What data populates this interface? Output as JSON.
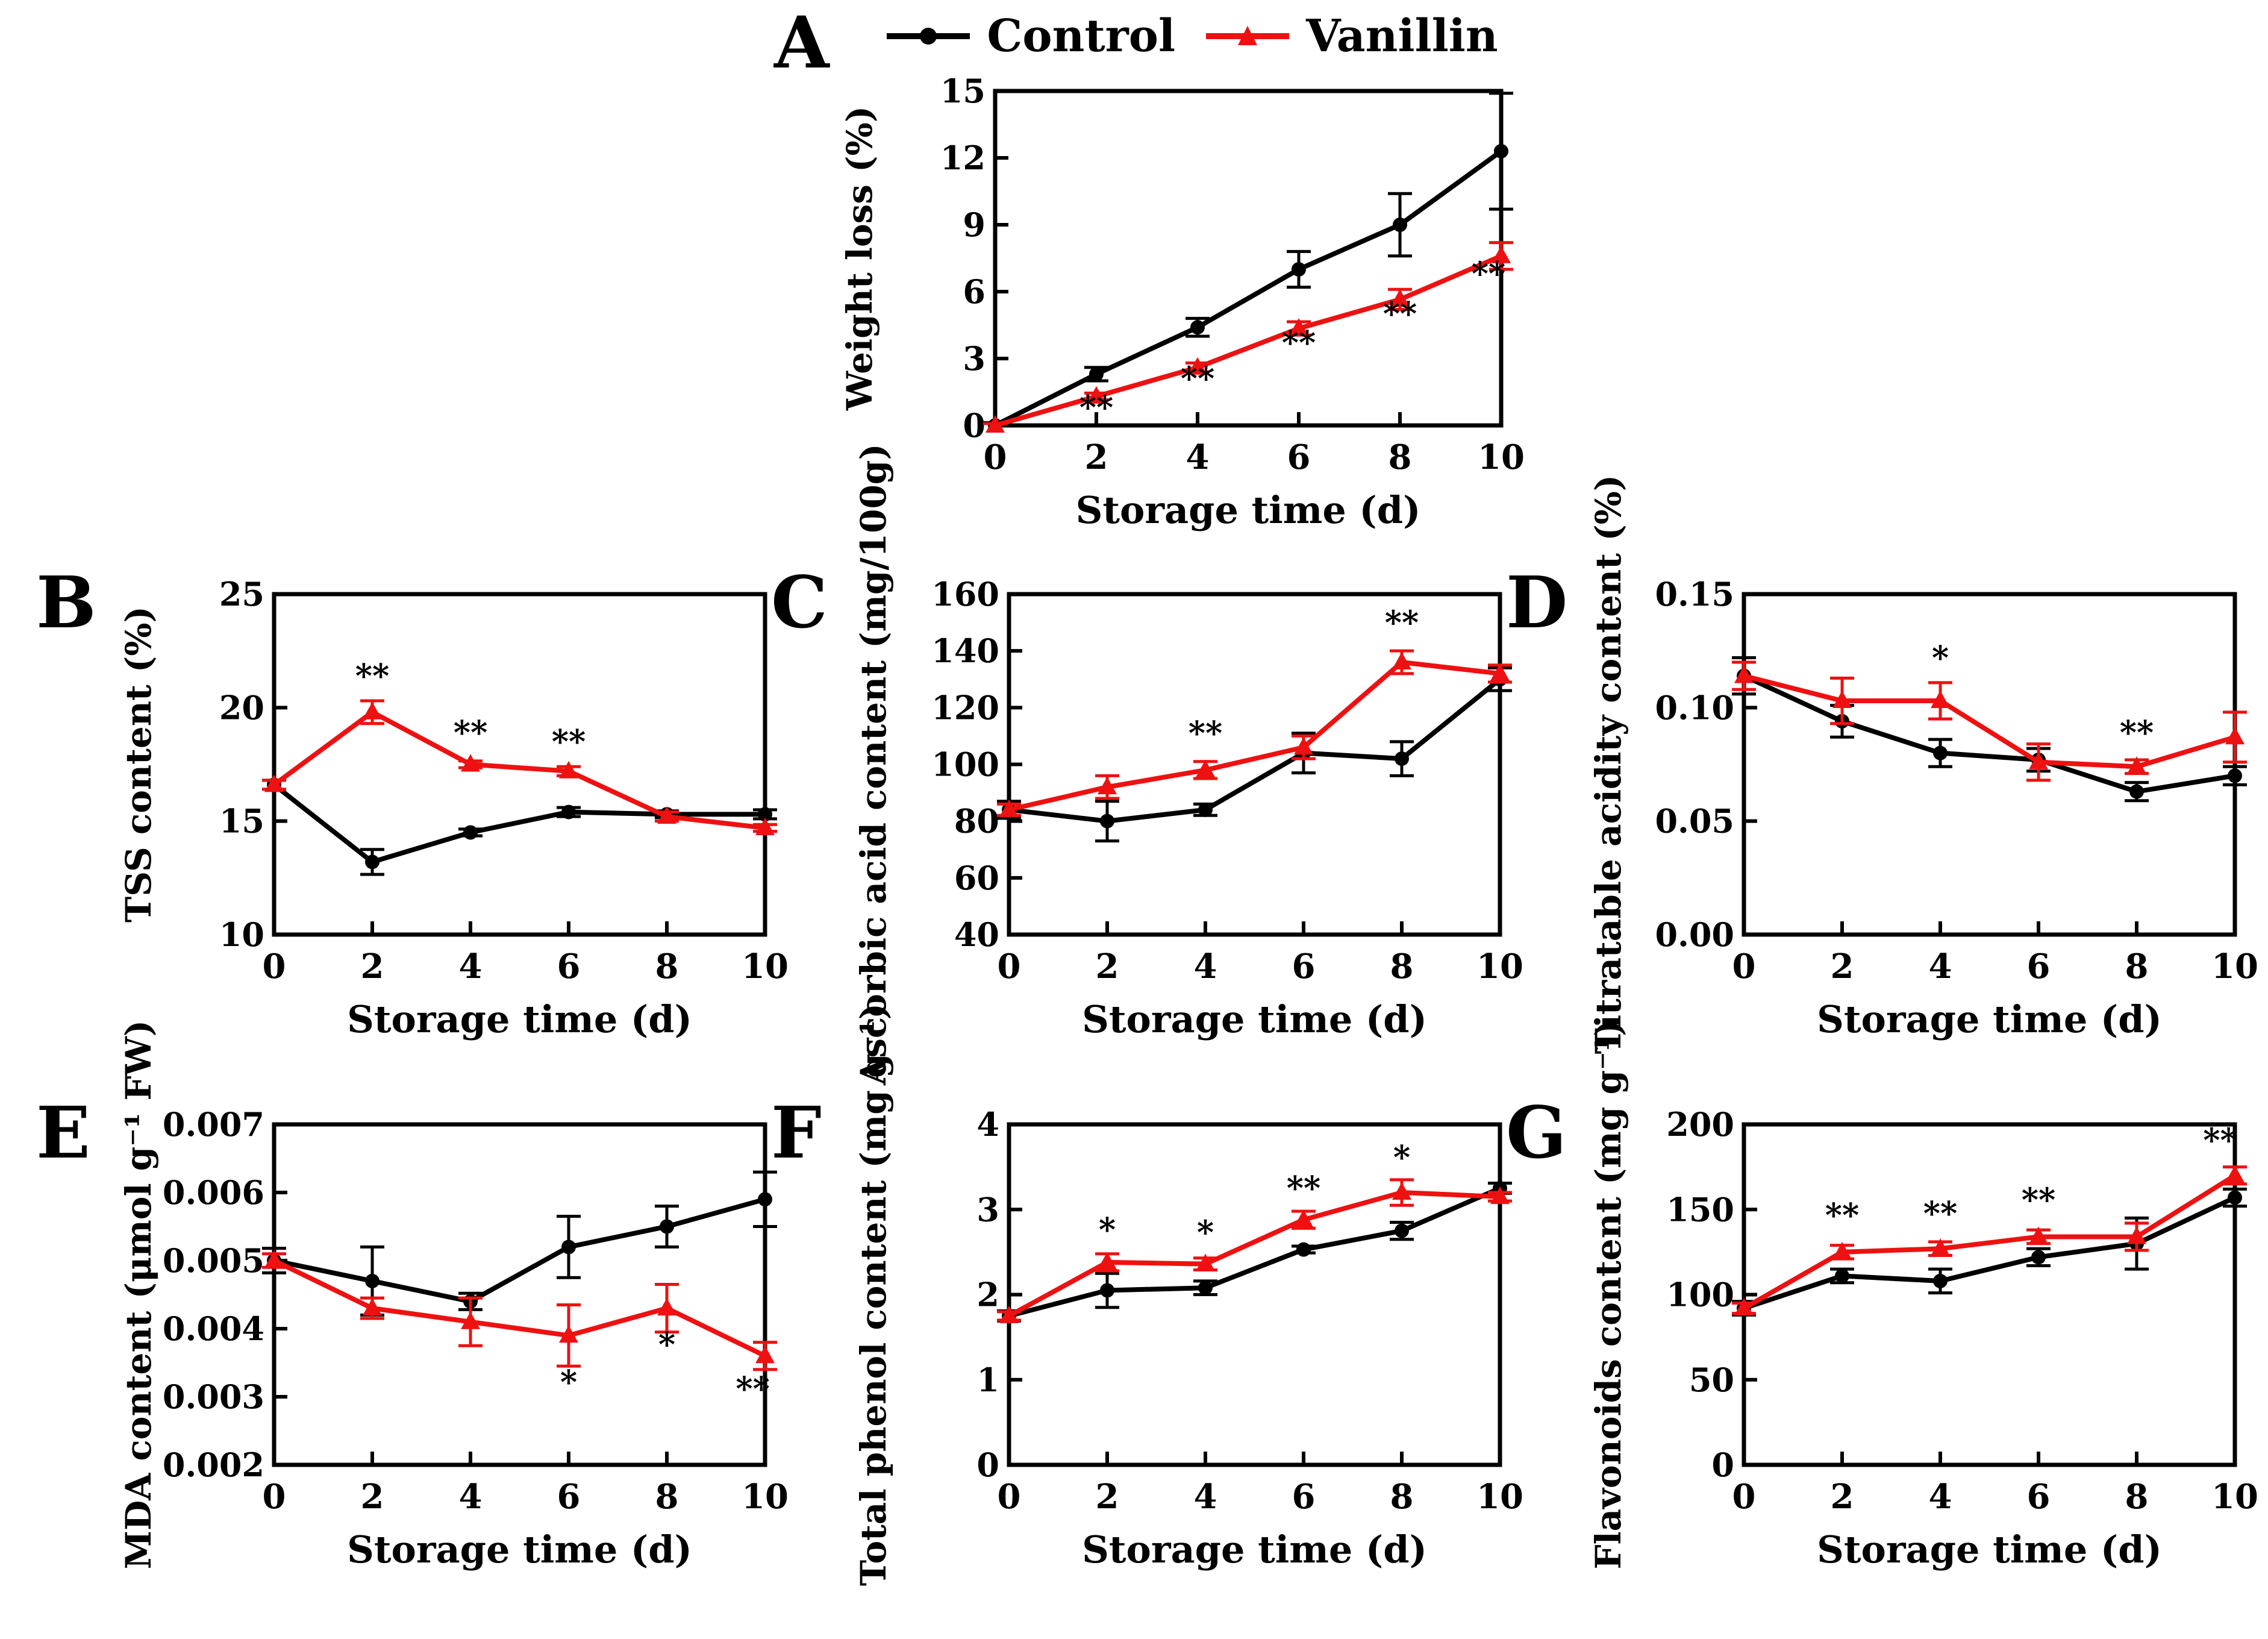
{
  "legend": {
    "items": [
      {
        "label": "Control",
        "color": "#000000",
        "marker": "circle"
      },
      {
        "label": "Vanillin",
        "color": "#ee1111",
        "marker": "triangle"
      }
    ]
  },
  "chart_data": [
    {
      "id": "A",
      "panel_label": "A",
      "type": "line",
      "title": "",
      "xlabel": "Storage time (d)",
      "ylabel": "Weight loss (%)",
      "x": [
        0,
        2,
        4,
        6,
        8,
        10
      ],
      "xlim": [
        0,
        10
      ],
      "ylim": [
        0,
        15
      ],
      "xticks": [
        0,
        2,
        4,
        6,
        8,
        10
      ],
      "xticklabels": [
        "0",
        "2",
        "4",
        "6",
        "8",
        "10"
      ],
      "yticks": [
        0,
        3,
        6,
        9,
        12,
        15
      ],
      "yticklabels": [
        "0",
        "3",
        "6",
        "9",
        "12",
        "15"
      ],
      "grid": false,
      "legend_position": "top",
      "series": [
        {
          "name": "Control",
          "color": "#000000",
          "marker": "circle",
          "values": [
            0,
            2.3,
            4.4,
            7.0,
            9.0,
            12.3
          ],
          "errors": [
            0.12,
            0.3,
            0.4,
            0.8,
            1.4,
            2.6
          ]
        },
        {
          "name": "Vanillin",
          "color": "#ee1111",
          "marker": "triangle",
          "values": [
            0,
            1.3,
            2.6,
            4.35,
            5.65,
            7.6
          ],
          "errors": [
            0.08,
            0.15,
            0.2,
            0.3,
            0.45,
            0.6
          ]
        }
      ],
      "annotations": [
        {
          "x": 2,
          "y": 0.3,
          "text": "**"
        },
        {
          "x": 4,
          "y": 1.6,
          "text": "**"
        },
        {
          "x": 6,
          "y": 3.2,
          "text": "**"
        },
        {
          "x": 8,
          "y": 4.5,
          "text": "**"
        },
        {
          "x": 9.75,
          "y": 6.3,
          "text": "**"
        }
      ]
    },
    {
      "id": "B",
      "panel_label": "B",
      "type": "line",
      "title": "",
      "xlabel": "Storage time (d)",
      "ylabel": "TSS content (%)",
      "x": [
        0,
        2,
        4,
        6,
        8,
        10
      ],
      "xlim": [
        0,
        10
      ],
      "ylim": [
        10,
        25
      ],
      "xticks": [
        0,
        2,
        4,
        6,
        8,
        10
      ],
      "xticklabels": [
        "0",
        "2",
        "4",
        "6",
        "8",
        "10"
      ],
      "yticks": [
        10,
        15,
        20,
        25
      ],
      "yticklabels": [
        "10",
        "15",
        "20",
        "25"
      ],
      "grid": false,
      "legend_position": "none",
      "series": [
        {
          "name": "Control",
          "color": "#000000",
          "marker": "circle",
          "values": [
            16.6,
            13.2,
            14.5,
            15.4,
            15.3,
            15.3
          ],
          "errors": [
            0.2,
            0.55,
            0.15,
            0.2,
            0.15,
            0.2
          ]
        },
        {
          "name": "Vanillin",
          "color": "#ee1111",
          "marker": "triangle",
          "values": [
            16.6,
            19.8,
            17.5,
            17.2,
            15.2,
            14.7
          ],
          "errors": [
            0.2,
            0.5,
            0.15,
            0.2,
            0.2,
            0.15
          ]
        }
      ],
      "annotations": [
        {
          "x": 2,
          "y": 20.9,
          "text": "**"
        },
        {
          "x": 4,
          "y": 18.4,
          "text": "**"
        },
        {
          "x": 6,
          "y": 18.0,
          "text": "**"
        }
      ]
    },
    {
      "id": "C",
      "panel_label": "C",
      "type": "line",
      "title": "",
      "xlabel": "Storage time (d)",
      "ylabel": "Ascorbic acid content (mg/100g)",
      "x": [
        0,
        2,
        4,
        6,
        8,
        10
      ],
      "xlim": [
        0,
        10
      ],
      "ylim": [
        40,
        160
      ],
      "xticks": [
        0,
        2,
        4,
        6,
        8,
        10
      ],
      "xticklabels": [
        "0",
        "2",
        "4",
        "6",
        "8",
        "10"
      ],
      "yticks": [
        40,
        60,
        80,
        100,
        120,
        140,
        160
      ],
      "yticklabels": [
        "40",
        "60",
        "80",
        "100",
        "120",
        "140",
        "160"
      ],
      "grid": false,
      "legend_position": "none",
      "series": [
        {
          "name": "Control",
          "color": "#000000",
          "marker": "circle",
          "values": [
            84,
            80,
            84,
            104,
            102,
            130
          ],
          "errors": [
            3,
            7,
            2,
            7,
            6,
            4
          ]
        },
        {
          "name": "Vanillin",
          "color": "#ee1111",
          "marker": "triangle",
          "values": [
            84,
            92,
            98,
            106,
            136,
            132
          ],
          "errors": [
            2,
            4,
            3,
            4,
            4,
            3
          ]
        }
      ],
      "annotations": [
        {
          "x": 4,
          "y": 107,
          "text": "**"
        },
        {
          "x": 8,
          "y": 146,
          "text": "**"
        }
      ]
    },
    {
      "id": "D",
      "panel_label": "D",
      "type": "line",
      "title": "",
      "xlabel": "Storage time (d)",
      "ylabel": "Titratable acidity content (%)",
      "x": [
        0,
        2,
        4,
        6,
        8,
        10
      ],
      "xlim": [
        0,
        10
      ],
      "ylim": [
        0,
        0.15
      ],
      "xticks": [
        0,
        2,
        4,
        6,
        8,
        10
      ],
      "xticklabels": [
        "0",
        "2",
        "4",
        "6",
        "8",
        "10"
      ],
      "yticks": [
        0,
        0.05,
        0.1,
        0.15
      ],
      "yticklabels": [
        "0.00",
        "0.05",
        "0.10",
        "0.15"
      ],
      "grid": false,
      "legend_position": "none",
      "series": [
        {
          "name": "Control",
          "color": "#000000",
          "marker": "circle",
          "values": [
            0.114,
            0.094,
            0.08,
            0.077,
            0.063,
            0.07
          ],
          "errors": [
            0.008,
            0.007,
            0.006,
            0.005,
            0.004,
            0.004
          ]
        },
        {
          "name": "Vanillin",
          "color": "#ee1111",
          "marker": "triangle",
          "values": [
            0.114,
            0.103,
            0.103,
            0.076,
            0.074,
            0.087
          ],
          "errors": [
            0.006,
            0.01,
            0.008,
            0.008,
            0.003,
            0.011
          ]
        }
      ],
      "annotations": [
        {
          "x": 4,
          "y": 0.117,
          "text": "*"
        },
        {
          "x": 8,
          "y": 0.084,
          "text": "**"
        }
      ]
    },
    {
      "id": "E",
      "panel_label": "E",
      "type": "line",
      "title": "",
      "xlabel": "Storage time (d)",
      "ylabel": "MDA content (μmol g⁻¹ FW)",
      "x": [
        0,
        2,
        4,
        6,
        8,
        10
      ],
      "xlim": [
        0,
        10
      ],
      "ylim": [
        0.002,
        0.007
      ],
      "xticks": [
        0,
        2,
        4,
        6,
        8,
        10
      ],
      "xticklabels": [
        "0",
        "2",
        "4",
        "6",
        "8",
        "10"
      ],
      "yticks": [
        0.002,
        0.003,
        0.004,
        0.005,
        0.006,
        0.007
      ],
      "yticklabels": [
        "0.002",
        "0.003",
        "0.004",
        "0.005",
        "0.006",
        "0.007"
      ],
      "grid": false,
      "legend_position": "none",
      "series": [
        {
          "name": "Control",
          "color": "#000000",
          "marker": "circle",
          "values": [
            0.005,
            0.0047,
            0.0044,
            0.0052,
            0.0055,
            0.0059
          ],
          "errors": [
            0.00018,
            0.0005,
            0.00012,
            0.00045,
            0.0003,
            0.0004
          ]
        },
        {
          "name": "Vanillin",
          "color": "#ee1111",
          "marker": "triangle",
          "values": [
            0.005,
            0.0043,
            0.0041,
            0.0039,
            0.0043,
            0.0036
          ],
          "errors": [
            0.0001,
            0.00015,
            0.00035,
            0.00045,
            0.00035,
            0.0002
          ]
        }
      ],
      "annotations": [
        {
          "x": 6,
          "y": 0.00305,
          "text": "*"
        },
        {
          "x": 8,
          "y": 0.0036,
          "text": "*"
        },
        {
          "x": 9.75,
          "y": 0.00295,
          "text": "**"
        }
      ]
    },
    {
      "id": "F",
      "panel_label": "F",
      "type": "line",
      "title": "",
      "xlabel": "Storage time (d)",
      "ylabel": "Total phenol content (mg g⁻¹)",
      "x": [
        0,
        2,
        4,
        6,
        8,
        10
      ],
      "xlim": [
        0,
        10
      ],
      "ylim": [
        0,
        4
      ],
      "xticks": [
        0,
        2,
        4,
        6,
        8,
        10
      ],
      "xticklabels": [
        "0",
        "2",
        "4",
        "6",
        "8",
        "10"
      ],
      "yticks": [
        0,
        1,
        2,
        3,
        4
      ],
      "yticklabels": [
        "0",
        "1",
        "2",
        "3",
        "4"
      ],
      "grid": false,
      "legend_position": "none",
      "series": [
        {
          "name": "Control",
          "color": "#000000",
          "marker": "circle",
          "values": [
            1.75,
            2.05,
            2.08,
            2.53,
            2.75,
            3.25
          ],
          "errors": [
            0.06,
            0.2,
            0.08,
            0.04,
            0.1,
            0.06
          ]
        },
        {
          "name": "Vanillin",
          "color": "#ee1111",
          "marker": "triangle",
          "values": [
            1.75,
            2.38,
            2.36,
            2.88,
            3.2,
            3.15
          ],
          "errors": [
            0.05,
            0.1,
            0.07,
            0.1,
            0.15,
            0.05
          ]
        }
      ],
      "annotations": [
        {
          "x": 2,
          "y": 2.63,
          "text": "*"
        },
        {
          "x": 4,
          "y": 2.6,
          "text": "*"
        },
        {
          "x": 6,
          "y": 3.12,
          "text": "**"
        },
        {
          "x": 8,
          "y": 3.48,
          "text": "*"
        }
      ]
    },
    {
      "id": "G",
      "panel_label": "G",
      "type": "line",
      "title": "",
      "xlabel": "Storage time (d)",
      "ylabel": "Flavonoids content (mg g⁻¹)",
      "x": [
        0,
        2,
        4,
        6,
        8,
        10
      ],
      "xlim": [
        0,
        10
      ],
      "ylim": [
        0,
        200
      ],
      "xticks": [
        0,
        2,
        4,
        6,
        8,
        10
      ],
      "xticklabels": [
        "0",
        "2",
        "4",
        "6",
        "8",
        "10"
      ],
      "yticks": [
        0,
        50,
        100,
        150,
        200
      ],
      "yticklabels": [
        "0",
        "50",
        "100",
        "150",
        "200"
      ],
      "grid": false,
      "legend_position": "none",
      "series": [
        {
          "name": "Control",
          "color": "#000000",
          "marker": "circle",
          "values": [
            92,
            111,
            108,
            122,
            130,
            157
          ],
          "errors": [
            4,
            4,
            7,
            5,
            15,
            5
          ]
        },
        {
          "name": "Vanillin",
          "color": "#ee1111",
          "marker": "triangle",
          "values": [
            92,
            125,
            127,
            134,
            134,
            170
          ],
          "errors": [
            3,
            4,
            4,
            4,
            8,
            5
          ]
        }
      ],
      "annotations": [
        {
          "x": 2,
          "y": 140,
          "text": "**"
        },
        {
          "x": 4,
          "y": 141,
          "text": "**"
        },
        {
          "x": 6,
          "y": 149,
          "text": "**"
        },
        {
          "x": 9.7,
          "y": 184,
          "text": "**"
        }
      ]
    }
  ]
}
